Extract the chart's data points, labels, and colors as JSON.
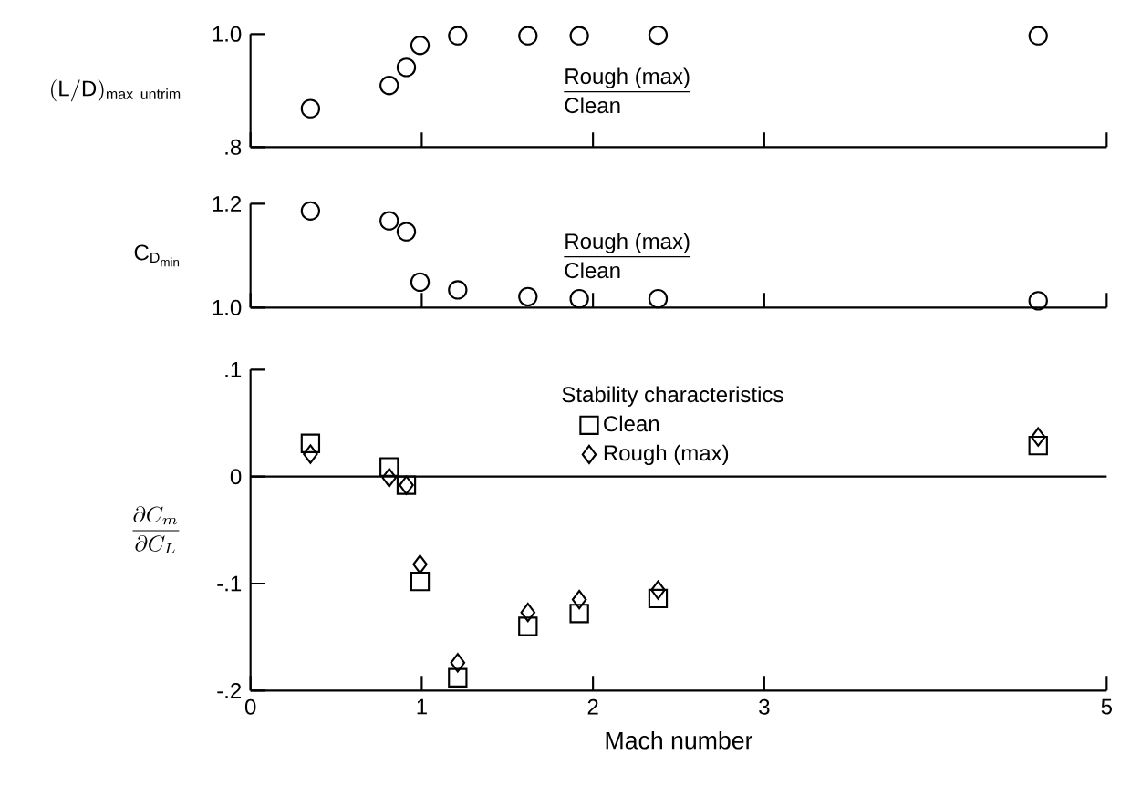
{
  "chart_data": [
    {
      "type": "scatter",
      "ylabel": "\\mathrm{(L/D)_{max\\ untrim}}",
      "annotations": [
        "Rough (max)",
        "Clean"
      ],
      "marker": "circle",
      "xlim": [
        0,
        5
      ],
      "xticks": [
        0,
        1,
        2,
        3,
        5
      ],
      "ylim": [
        0.8,
        1.0
      ],
      "yticks": [
        {
          "value": 0.8,
          "label": ".8"
        },
        {
          "value": 1.0,
          "label": "1.0"
        }
      ],
      "tick_labels": "y",
      "grid": false,
      "legend": false,
      "series": [
        {
          "color": "#000000",
          "x": [
            0.35,
            0.81,
            0.91,
            0.99,
            1.21,
            1.62,
            1.92,
            2.38,
            4.6
          ],
          "values": [
            0.868,
            0.909,
            0.941,
            0.98,
            0.997,
            0.997,
            0.997,
            0.998,
            0.997
          ]
        }
      ]
    },
    {
      "type": "scatter",
      "ylabel": "\\mathrm{C_{D_{min}}}",
      "annotations": [
        "Rough (max)",
        "Clean"
      ],
      "marker": "circle",
      "xlim": [
        0,
        5
      ],
      "xticks": [
        0,
        1,
        2,
        3,
        5
      ],
      "ylim": [
        1.0,
        1.2
      ],
      "yticks": [
        {
          "value": 1.0,
          "label": "1.0"
        },
        {
          "value": 1.2,
          "label": "1.2"
        }
      ],
      "tick_labels": "y",
      "grid": false,
      "legend": false,
      "series": [
        {
          "color": "#000000",
          "x": [
            0.35,
            0.81,
            0.91,
            0.99,
            1.21,
            1.62,
            1.92,
            2.38,
            4.6
          ],
          "values": [
            1.186,
            1.167,
            1.146,
            1.049,
            1.034,
            1.021,
            1.017,
            1.017,
            1.013
          ]
        }
      ]
    },
    {
      "type": "scatter",
      "ylabel": "\\frac{\\partial C_m}{\\partial C_L}",
      "xlabel": "Mach number",
      "legend_title": "Stability characteristics",
      "legend": "top",
      "xlim": [
        0,
        5
      ],
      "xticks": [
        0,
        1,
        2,
        3,
        5
      ],
      "ylim": [
        -0.2,
        0.1
      ],
      "yticks": [
        {
          "value": -0.2,
          "label": "-.2"
        },
        {
          "value": -0.1,
          "label": "-.1"
        },
        0,
        {
          "value": 0.1,
          "label": ".1"
        }
      ],
      "grid": false,
      "ref_lines": [
        {
          "axis": "y",
          "value": 0
        }
      ],
      "series": [
        {
          "name": "Clean",
          "marker": "square",
          "color": "#000000",
          "x": [
            0.35,
            0.81,
            0.91,
            0.99,
            1.21,
            1.62,
            1.92,
            2.38,
            4.6
          ],
          "values": [
            0.031,
            0.009,
            -0.008,
            -0.098,
            -0.188,
            -0.14,
            -0.128,
            -0.114,
            0.029
          ]
        },
        {
          "name": "Rough (max)",
          "marker": "diamond",
          "color": "#000000",
          "x": [
            0.35,
            0.81,
            0.91,
            0.99,
            1.21,
            1.62,
            1.92,
            2.38,
            4.6
          ],
          "values": [
            0.021,
            -0.001,
            -0.008,
            -0.082,
            -0.174,
            -0.127,
            -0.115,
            -0.106,
            0.037
          ]
        }
      ]
    }
  ]
}
